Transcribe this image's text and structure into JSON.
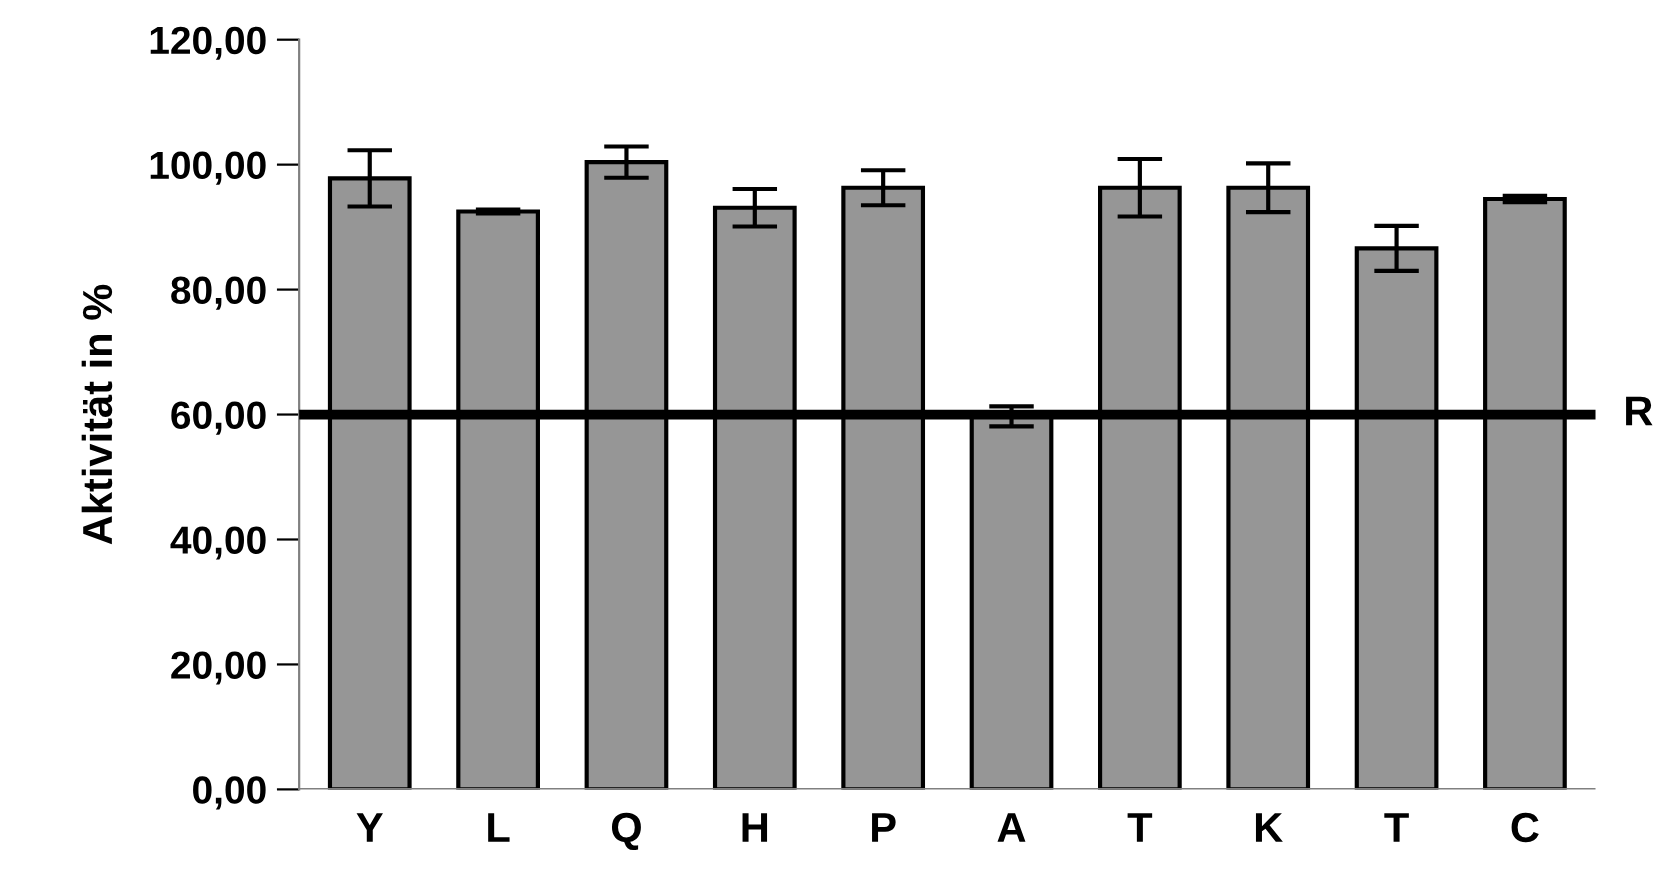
{
  "chart_data": {
    "type": "bar",
    "ylabel": "Aktivität in %",
    "categories": [
      "Y",
      "L",
      "Q",
      "H",
      "P",
      "A",
      "T",
      "K",
      "T",
      "C"
    ],
    "values": [
      97.8,
      92.5,
      100.4,
      93.1,
      96.3,
      59.7,
      96.3,
      96.3,
      86.6,
      94.5
    ],
    "errors": [
      4.5,
      0.3,
      2.5,
      3.0,
      2.8,
      1.6,
      4.6,
      3.9,
      3.6,
      0.5
    ],
    "color": "#969696",
    "ylim": [
      0,
      120
    ],
    "yticks": [
      {
        "value": 0,
        "label": "0,00"
      },
      {
        "value": 20,
        "label": "20,00"
      },
      {
        "value": 40,
        "label": "40,00"
      },
      {
        "value": 60,
        "label": "60,00"
      },
      {
        "value": 80,
        "label": "80,00"
      },
      {
        "value": 100,
        "label": "100,00"
      },
      {
        "value": 120,
        "label": "120,00"
      }
    ],
    "ref_lines": [
      {
        "axis": "y",
        "value": 60,
        "label": "R",
        "color": "#000000"
      }
    ],
    "grid": false,
    "legend": false
  }
}
